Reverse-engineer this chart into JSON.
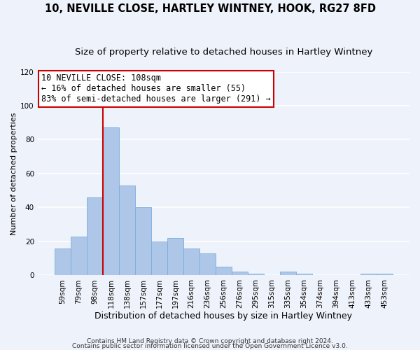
{
  "title": "10, NEVILLE CLOSE, HARTLEY WINTNEY, HOOK, RG27 8FD",
  "subtitle": "Size of property relative to detached houses in Hartley Wintney",
  "xlabel": "Distribution of detached houses by size in Hartley Wintney",
  "ylabel": "Number of detached properties",
  "bar_labels": [
    "59sqm",
    "79sqm",
    "98sqm",
    "118sqm",
    "138sqm",
    "157sqm",
    "177sqm",
    "197sqm",
    "216sqm",
    "236sqm",
    "256sqm",
    "276sqm",
    "295sqm",
    "315sqm",
    "335sqm",
    "354sqm",
    "374sqm",
    "394sqm",
    "413sqm",
    "433sqm",
    "453sqm"
  ],
  "bar_values": [
    16,
    23,
    46,
    87,
    53,
    40,
    20,
    22,
    16,
    13,
    5,
    2,
    1,
    0,
    2,
    1,
    0,
    0,
    0,
    1,
    1
  ],
  "bar_color": "#aec6e8",
  "bar_edge_color": "#7aadda",
  "background_color": "#eef2fb",
  "grid_color": "#ffffff",
  "vline_color": "#cc0000",
  "vline_x_index": 3,
  "annotation_title": "10 NEVILLE CLOSE: 108sqm",
  "annotation_line1": "← 16% of detached houses are smaller (55)",
  "annotation_line2": "83% of semi-detached houses are larger (291) →",
  "annotation_box_facecolor": "#ffffff",
  "annotation_box_edgecolor": "#cc0000",
  "ylim": [
    0,
    120
  ],
  "yticks": [
    0,
    20,
    40,
    60,
    80,
    100,
    120
  ],
  "footer1": "Contains HM Land Registry data © Crown copyright and database right 2024.",
  "footer2": "Contains public sector information licensed under the Open Government Licence v3.0.",
  "title_fontsize": 10.5,
  "subtitle_fontsize": 9.5,
  "xlabel_fontsize": 9,
  "ylabel_fontsize": 8,
  "tick_fontsize": 7.5,
  "annotation_fontsize": 8.5,
  "footer_fontsize": 6.5
}
